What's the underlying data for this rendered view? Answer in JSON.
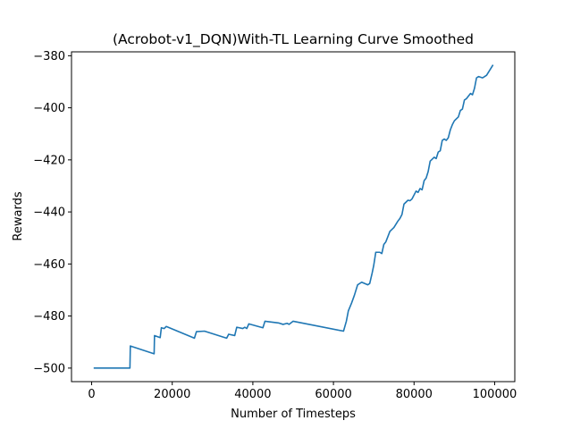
{
  "chart_data": {
    "type": "line",
    "title": "(Acrobot-v1_DQN)With-TL Learning Curve Smoothed",
    "xlabel": "Number of Timesteps",
    "ylabel": "Rewards",
    "xlim": [
      -5000,
      105000
    ],
    "ylim": [
      -505.2,
      -378.5
    ],
    "xticks": [
      0,
      20000,
      40000,
      60000,
      80000,
      100000
    ],
    "xtick_labels": [
      "0",
      "20000",
      "40000",
      "60000",
      "80000",
      "100000"
    ],
    "yticks": [
      -500,
      -480,
      -460,
      -440,
      -420,
      -400,
      -380
    ],
    "ytick_labels": [
      "−500",
      "−480",
      "−460",
      "−440",
      "−420",
      "−400",
      "−380"
    ],
    "grid": false,
    "line_color": "#1f77b4",
    "series": [
      {
        "x": [
          500,
          9500,
          9600,
          15500,
          15600,
          17000,
          17300,
          18000,
          18500,
          25500,
          26000,
          28000,
          33500,
          34000,
          35500,
          36000,
          37500,
          38000,
          38500,
          39000,
          42500,
          43000,
          46500,
          47500,
          48500,
          49000,
          50000,
          62500,
          63200,
          63700,
          64500,
          65200,
          66000,
          67000,
          68500,
          69000,
          69600,
          70000,
          70500,
          71500,
          72000,
          72500,
          73000,
          73500,
          74000,
          75000,
          76000,
          76500,
          77000,
          77500,
          78500,
          79000,
          79500,
          80500,
          81000,
          81500,
          82000,
          82500,
          83000,
          83500,
          84000,
          85000,
          85500,
          86000,
          86500,
          87000,
          87500,
          88000,
          88500,
          89000,
          89500,
          90000,
          91000,
          91500,
          92000,
          92500,
          93000,
          94000,
          94500,
          95000,
          95500,
          96000,
          97000,
          97500,
          98000,
          99000,
          99600
        ],
        "y": [
          -500,
          -500,
          -491.5,
          -494.5,
          -487.5,
          -488.3,
          -484.5,
          -484.8,
          -484,
          -488.5,
          -486,
          -485.8,
          -488.5,
          -487,
          -487.5,
          -484.3,
          -484.8,
          -484.3,
          -484.8,
          -483,
          -484.5,
          -482,
          -482.7,
          -483.2,
          -482.8,
          -483.2,
          -482,
          -485.8,
          -482,
          -478,
          -475,
          -472,
          -468,
          -467,
          -468,
          -467.5,
          -463.5,
          -460.5,
          -455.5,
          -455.5,
          -456,
          -452.5,
          -451.5,
          -449.5,
          -447.5,
          -446,
          -443.5,
          -442.5,
          -441,
          -437,
          -435.5,
          -435.7,
          -435,
          -432,
          -432.5,
          -431,
          -431.5,
          -428,
          -427,
          -424.5,
          -420.5,
          -419,
          -419.5,
          -417,
          -416.5,
          -412.5,
          -412,
          -412.5,
          -411.5,
          -408.5,
          -406.5,
          -405,
          -403.5,
          -401,
          -400.5,
          -397,
          -396.5,
          -394.5,
          -395,
          -392.5,
          -388.5,
          -388,
          -388.5,
          -388,
          -387.5,
          -385,
          -383.5
        ]
      }
    ]
  }
}
